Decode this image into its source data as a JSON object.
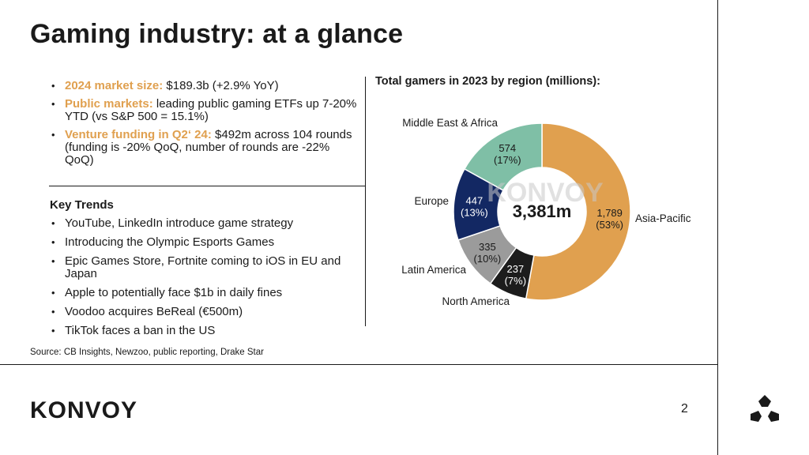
{
  "title": "Gaming industry: at a glance",
  "bullets": [
    {
      "label": "2024 market size:",
      "text": " $189.3b (+2.9% YoY)"
    },
    {
      "label": "Public markets:",
      "text": " leading public gaming ETFs up 7-20% YTD (vs S&P 500 = 15.1%)"
    },
    {
      "label": "Venture funding in Q2‘ 24:",
      "text": " $492m across 104 rounds (funding is -20% QoQ, number of rounds are -22% QoQ)"
    }
  ],
  "trends_heading": "Key Trends",
  "trends": [
    "YouTube, LinkedIn introduce game strategy",
    "Introducing the Olympic Esports Games",
    "Epic Games Store, Fortnite coming to iOS in EU and Japan",
    "Apple to potentially face $1b in daily fines",
    "Voodoo acquires BeReal (€500m)",
    "TikTok faces a ban in the US"
  ],
  "source": "Source: CB Insights, Newzoo, public reporting, Drake Star",
  "chart_data": {
    "type": "pie",
    "title": "Total gamers in 2023 by region (millions):",
    "center_label": "3,381m",
    "center_watermark": "KONVOY",
    "slices": [
      {
        "name": "Asia-Pacific",
        "value": 1789,
        "value_label": "1,789",
        "pct_label": "(53%)",
        "color": "#e0a04f",
        "text_color": "#1a1a1a"
      },
      {
        "name": "North America",
        "value": 237,
        "value_label": "237",
        "pct_label": "(7%)",
        "color": "#1c1c1c",
        "text_color": "#ffffff"
      },
      {
        "name": "Latin America",
        "value": 335,
        "value_label": "335",
        "pct_label": "(10%)",
        "color": "#9b9b9b",
        "text_color": "#1a1a1a"
      },
      {
        "name": "Europe",
        "value": 447,
        "value_label": "447",
        "pct_label": "(13%)",
        "color": "#132863",
        "text_color": "#ffffff"
      },
      {
        "name": "Middle East & Africa",
        "value": 574,
        "value_label": "574",
        "pct_label": "(17%)",
        "color": "#7fbfa6",
        "text_color": "#1a1a1a"
      }
    ]
  },
  "footer": {
    "logo": "KONVOY",
    "page_number": "2"
  }
}
